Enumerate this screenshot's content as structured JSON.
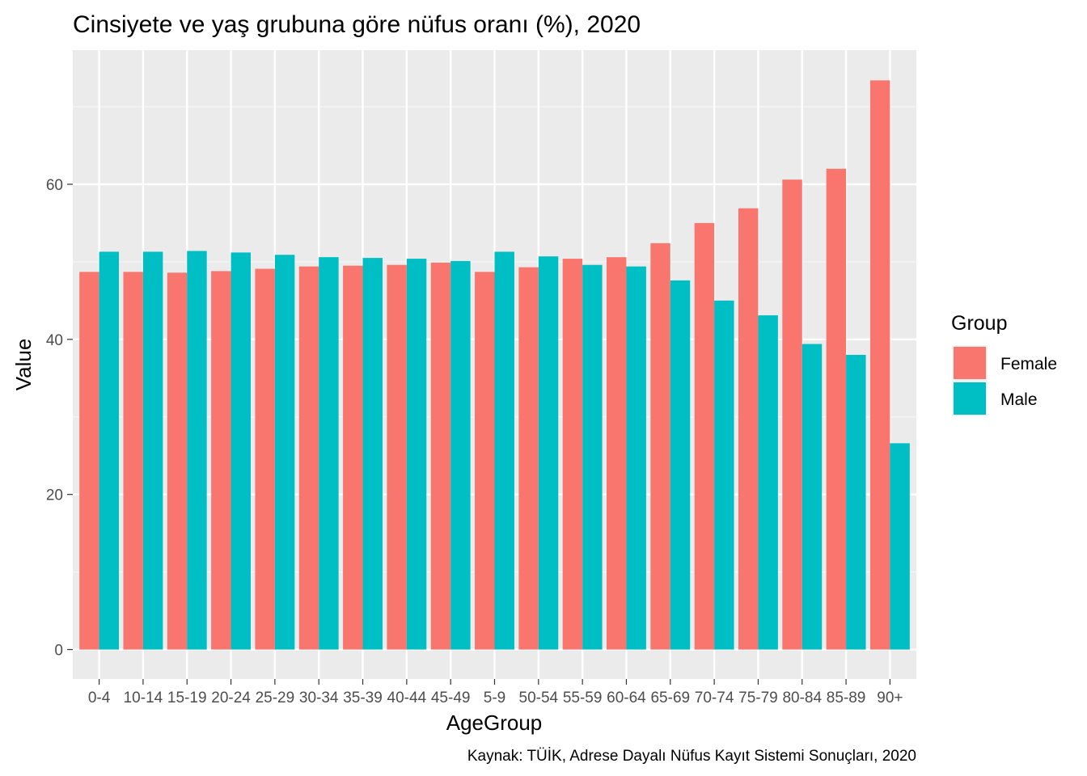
{
  "chart_data": {
    "type": "bar",
    "title": "Cinsiyete ve yaş grubuna göre nüfus oranı (%), 2020",
    "xlabel": "AgeGroup",
    "ylabel": "Value",
    "caption": "Kaynak: TÜİK, Adrese Dayalı Nüfus Kayıt Sistemi Sonuçları, 2020",
    "ylim": [
      -3.8,
      77.3
    ],
    "yticks": [
      0,
      20,
      40,
      60
    ],
    "ytick_labels": [
      "0",
      "20",
      "40",
      "60"
    ],
    "grid": true,
    "legend": {
      "title": "Group",
      "position": "right"
    },
    "categories": [
      "0-4",
      "10-14",
      "15-19",
      "20-24",
      "25-29",
      "30-34",
      "35-39",
      "40-44",
      "45-49",
      "5-9",
      "50-54",
      "55-59",
      "60-64",
      "65-69",
      "70-74",
      "75-79",
      "80-84",
      "85-89",
      "90+"
    ],
    "series": [
      {
        "name": "Female",
        "color": "#F8766D",
        "values": [
          48.7,
          48.7,
          48.6,
          48.8,
          49.1,
          49.4,
          49.5,
          49.6,
          49.9,
          48.7,
          49.3,
          50.4,
          50.6,
          52.4,
          55.0,
          56.9,
          60.6,
          62.0,
          73.4
        ]
      },
      {
        "name": "Male",
        "color": "#00BFC4",
        "values": [
          51.3,
          51.3,
          51.4,
          51.2,
          50.9,
          50.6,
          50.5,
          50.4,
          50.1,
          51.3,
          50.7,
          49.6,
          49.4,
          47.6,
          45.0,
          43.1,
          39.4,
          38.0,
          26.6
        ]
      }
    ]
  }
}
